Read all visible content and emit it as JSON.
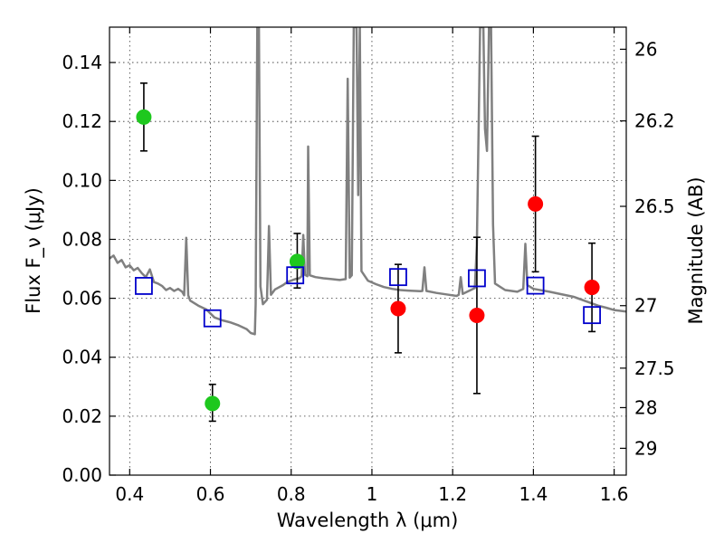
{
  "chart_data": {
    "type": "scatter",
    "title": "",
    "xlabel": "Wavelength λ (μm)",
    "ylabel": "Flux F_ν (μJy)",
    "y2label": "Magnitude (AB)",
    "xlim": [
      0.35,
      1.63
    ],
    "ylim": [
      0.0,
      0.152
    ],
    "grid": true,
    "x_ticks": [
      0.4,
      0.6,
      0.8,
      1.0,
      1.2,
      1.4,
      1.6
    ],
    "x_tick_labels": [
      "0.4",
      "0.6",
      "0.8",
      "1",
      "1.2",
      "1.4",
      "1.6"
    ],
    "y_ticks": [
      0.0,
      0.02,
      0.04,
      0.06,
      0.08,
      0.1,
      0.12,
      0.14
    ],
    "y_tick_labels": [
      "0.00",
      "0.02",
      "0.04",
      "0.06",
      "0.08",
      "0.10",
      "0.12",
      "0.14"
    ],
    "y2_ticks": [
      {
        "flux": 0.1445,
        "label": "26"
      },
      {
        "flux": 0.1202,
        "label": "26.2"
      },
      {
        "flux": 0.0912,
        "label": "26.5"
      },
      {
        "flux": 0.0575,
        "label": "27"
      },
      {
        "flux": 0.0363,
        "label": "27.5"
      },
      {
        "flux": 0.0229,
        "label": "28"
      },
      {
        "flux": 0.0091,
        "label": "29"
      }
    ],
    "colors": {
      "sed": "#808080",
      "photometry_green": "#1ec81e",
      "photometry_red": "#ff0000",
      "model_squares": "#0000cc",
      "errorbar": "#000000"
    },
    "series": [
      {
        "kind": "line",
        "points": [
          [
            0.35,
            0.0735
          ],
          [
            0.36,
            0.0745
          ],
          [
            0.37,
            0.072
          ],
          [
            0.38,
            0.073
          ],
          [
            0.39,
            0.0705
          ],
          [
            0.4,
            0.0712
          ],
          [
            0.41,
            0.0695
          ],
          [
            0.42,
            0.0703
          ],
          [
            0.43,
            0.0685
          ],
          [
            0.44,
            0.0672
          ],
          [
            0.45,
            0.0698
          ],
          [
            0.46,
            0.0655
          ],
          [
            0.47,
            0.065
          ],
          [
            0.48,
            0.0642
          ],
          [
            0.49,
            0.0628
          ],
          [
            0.5,
            0.0635
          ],
          [
            0.51,
            0.0625
          ],
          [
            0.52,
            0.0632
          ],
          [
            0.53,
            0.0622
          ],
          [
            0.535,
            0.061
          ],
          [
            0.54,
            0.0805
          ],
          [
            0.545,
            0.061
          ],
          [
            0.55,
            0.0592
          ],
          [
            0.57,
            0.0575
          ],
          [
            0.59,
            0.0562
          ],
          [
            0.61,
            0.0535
          ],
          [
            0.63,
            0.0525
          ],
          [
            0.65,
            0.0518
          ],
          [
            0.67,
            0.0508
          ],
          [
            0.69,
            0.0495
          ],
          [
            0.7,
            0.0482
          ],
          [
            0.71,
            0.0478
          ],
          [
            0.712,
            0.058
          ],
          [
            0.716,
            0.152
          ],
          [
            0.72,
            0.152
          ],
          [
            0.724,
            0.064
          ],
          [
            0.73,
            0.058
          ],
          [
            0.74,
            0.0595
          ],
          [
            0.745,
            0.0845
          ],
          [
            0.75,
            0.0612
          ],
          [
            0.76,
            0.063
          ],
          [
            0.78,
            0.0645
          ],
          [
            0.79,
            0.0655
          ],
          [
            0.8,
            0.066
          ],
          [
            0.81,
            0.0665
          ],
          [
            0.82,
            0.0668
          ],
          [
            0.826,
            0.0675
          ],
          [
            0.83,
            0.0815
          ],
          [
            0.834,
            0.068
          ],
          [
            0.84,
            0.0675
          ],
          [
            0.842,
            0.1115
          ],
          [
            0.846,
            0.0678
          ],
          [
            0.86,
            0.0672
          ],
          [
            0.88,
            0.0668
          ],
          [
            0.9,
            0.0665
          ],
          [
            0.92,
            0.0662
          ],
          [
            0.935,
            0.0665
          ],
          [
            0.94,
            0.1345
          ],
          [
            0.945,
            0.067
          ],
          [
            0.95,
            0.0678
          ],
          [
            0.955,
            0.152
          ],
          [
            0.962,
            0.152
          ],
          [
            0.966,
            0.095
          ],
          [
            0.97,
            0.152
          ],
          [
            0.974,
            0.0692
          ],
          [
            0.99,
            0.066
          ],
          [
            1.01,
            0.0648
          ],
          [
            1.03,
            0.0638
          ],
          [
            1.05,
            0.0632
          ],
          [
            1.07,
            0.0628
          ],
          [
            1.09,
            0.0626
          ],
          [
            1.12,
            0.0624
          ],
          [
            1.125,
            0.0625
          ],
          [
            1.13,
            0.0705
          ],
          [
            1.135,
            0.0625
          ],
          [
            1.16,
            0.0618
          ],
          [
            1.19,
            0.0612
          ],
          [
            1.21,
            0.0608
          ],
          [
            1.215,
            0.0612
          ],
          [
            1.22,
            0.0672
          ],
          [
            1.225,
            0.0615
          ],
          [
            1.24,
            0.0625
          ],
          [
            1.255,
            0.0635
          ],
          [
            1.26,
            0.078
          ],
          [
            1.265,
            0.1245
          ],
          [
            1.268,
            0.152
          ],
          [
            1.276,
            0.152
          ],
          [
            1.28,
            0.1175
          ],
          [
            1.285,
            0.11
          ],
          [
            1.29,
            0.152
          ],
          [
            1.295,
            0.1525
          ],
          [
            1.3,
            0.085
          ],
          [
            1.305,
            0.065
          ],
          [
            1.33,
            0.0628
          ],
          [
            1.36,
            0.0622
          ],
          [
            1.375,
            0.0632
          ],
          [
            1.38,
            0.0785
          ],
          [
            1.385,
            0.0645
          ],
          [
            1.4,
            0.0632
          ],
          [
            1.44,
            0.0622
          ],
          [
            1.5,
            0.0605
          ],
          [
            1.56,
            0.0575
          ],
          [
            1.58,
            0.0568
          ],
          [
            1.6,
            0.056
          ],
          [
            1.63,
            0.0555
          ]
        ]
      },
      {
        "kind": "points",
        "marker": "circle",
        "color": "#1ec81e",
        "points": [
          {
            "x": 0.435,
            "y": 0.1215,
            "err_low": 0.0115,
            "err_high": 0.0115
          },
          {
            "x": 0.605,
            "y": 0.0243,
            "err_low": 0.006,
            "err_high": 0.0065
          },
          {
            "x": 0.815,
            "y": 0.0725,
            "err_low": 0.009,
            "err_high": 0.0095
          }
        ]
      },
      {
        "kind": "points",
        "marker": "circle",
        "color": "#ff0000",
        "points": [
          {
            "x": 1.065,
            "y": 0.0565,
            "err_low": 0.015,
            "err_high": 0.015
          },
          {
            "x": 1.26,
            "y": 0.0542,
            "err_low": 0.0265,
            "err_high": 0.0265
          },
          {
            "x": 1.405,
            "y": 0.092,
            "err_low": 0.023,
            "err_high": 0.023
          },
          {
            "x": 1.545,
            "y": 0.0637,
            "err_low": 0.015,
            "err_high": 0.015
          }
        ]
      },
      {
        "kind": "points",
        "marker": "square",
        "color": "#0000cc",
        "points": [
          {
            "x": 0.435,
            "y": 0.0642
          },
          {
            "x": 0.605,
            "y": 0.0532
          },
          {
            "x": 0.81,
            "y": 0.0678
          },
          {
            "x": 1.065,
            "y": 0.0672
          },
          {
            "x": 1.26,
            "y": 0.0668
          },
          {
            "x": 1.405,
            "y": 0.0643
          },
          {
            "x": 1.545,
            "y": 0.0543
          }
        ]
      }
    ]
  }
}
